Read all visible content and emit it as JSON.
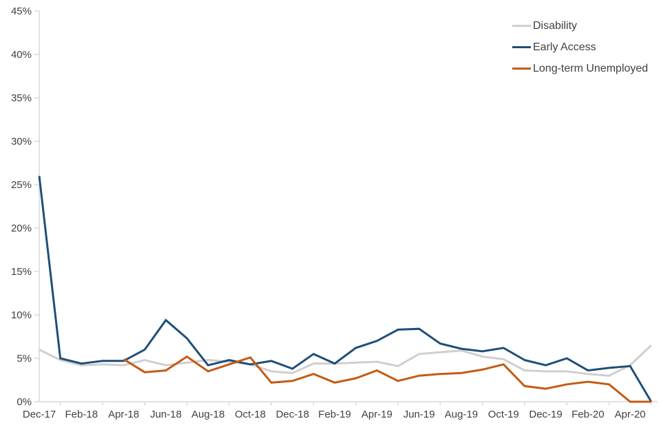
{
  "chart_data": {
    "type": "line",
    "title": "",
    "xlabel": "",
    "ylabel": "",
    "grid": false,
    "legend_position": "top-right",
    "axis_color": "#d9d9d9",
    "text_color": "#404040",
    "ylim": [
      0,
      45
    ],
    "yticks": [
      0,
      5,
      10,
      15,
      20,
      25,
      30,
      35,
      40,
      45
    ],
    "ytick_suffix": "%",
    "x_label_every": 2,
    "x": [
      "Dec-17",
      "Jan-18",
      "Feb-18",
      "Mar-18",
      "Apr-18",
      "May-18",
      "Jun-18",
      "Jul-18",
      "Aug-18",
      "Sep-18",
      "Oct-18",
      "Nov-18",
      "Dec-18",
      "Jan-19",
      "Feb-19",
      "Mar-19",
      "Apr-19",
      "May-19",
      "Jun-19",
      "Jul-19",
      "Aug-19",
      "Sep-19",
      "Oct-19",
      "Nov-19",
      "Dec-19",
      "Jan-20",
      "Feb-20",
      "Mar-20",
      "Apr-20",
      "May-20"
    ],
    "series": [
      {
        "name": "Disability",
        "color": "#d0cece",
        "values": [
          6.0,
          4.8,
          4.2,
          4.3,
          4.2,
          4.8,
          4.2,
          4.5,
          4.8,
          4.6,
          4.3,
          3.5,
          3.3,
          4.4,
          4.4,
          4.5,
          4.6,
          4.1,
          5.5,
          5.7,
          5.9,
          5.2,
          4.9,
          3.6,
          3.5,
          3.5,
          3.2,
          3.0,
          4.2,
          6.5
        ]
      },
      {
        "name": "Early Access",
        "color": "#1f4e79",
        "values": [
          26.0,
          5.0,
          4.4,
          4.7,
          4.7,
          6.0,
          9.4,
          7.3,
          4.2,
          4.8,
          4.3,
          4.7,
          3.8,
          5.5,
          4.4,
          6.2,
          7.0,
          8.3,
          8.4,
          6.7,
          6.1,
          5.8,
          6.2,
          4.8,
          4.2,
          5.0,
          3.6,
          3.9,
          4.1,
          0.0
        ]
      },
      {
        "name": "Long-term Unemployed",
        "color": "#c55a11",
        "values": [
          null,
          null,
          null,
          null,
          4.9,
          3.4,
          3.6,
          5.2,
          3.5,
          4.3,
          5.1,
          2.2,
          2.4,
          3.2,
          2.2,
          2.7,
          3.6,
          2.4,
          3.0,
          3.2,
          3.3,
          3.7,
          4.3,
          1.8,
          1.5,
          2.0,
          2.3,
          2.0,
          0.0,
          0.0
        ]
      }
    ]
  }
}
